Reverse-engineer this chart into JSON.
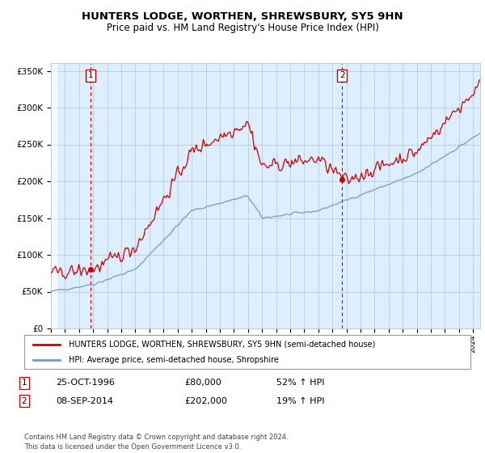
{
  "title": "HUNTERS LODGE, WORTHEN, SHREWSBURY, SY5 9HN",
  "subtitle": "Price paid vs. HM Land Registry's House Price Index (HPI)",
  "legend_line1": "HUNTERS LODGE, WORTHEN, SHREWSBURY, SY5 9HN (semi-detached house)",
  "legend_line2": "HPI: Average price, semi-detached house, Shropshire",
  "annotation1_date": "25-OCT-1996",
  "annotation1_price": "£80,000",
  "annotation1_hpi": "52% ↑ HPI",
  "annotation2_date": "08-SEP-2014",
  "annotation2_price": "£202,000",
  "annotation2_hpi": "19% ↑ HPI",
  "footer": "Contains HM Land Registry data © Crown copyright and database right 2024.\nThis data is licensed under the Open Government Licence v3.0.",
  "sale1_year": 1996.81,
  "sale1_value": 80000,
  "sale2_year": 2014.69,
  "sale2_value": 202000,
  "red_color": "#cc0000",
  "blue_color": "#7799cc",
  "background_color": "#ddeeff",
  "grid_color": "#b0c4de",
  "ylim": [
    0,
    360000
  ],
  "xlim_start": 1994.0,
  "xlim_end": 2024.5
}
